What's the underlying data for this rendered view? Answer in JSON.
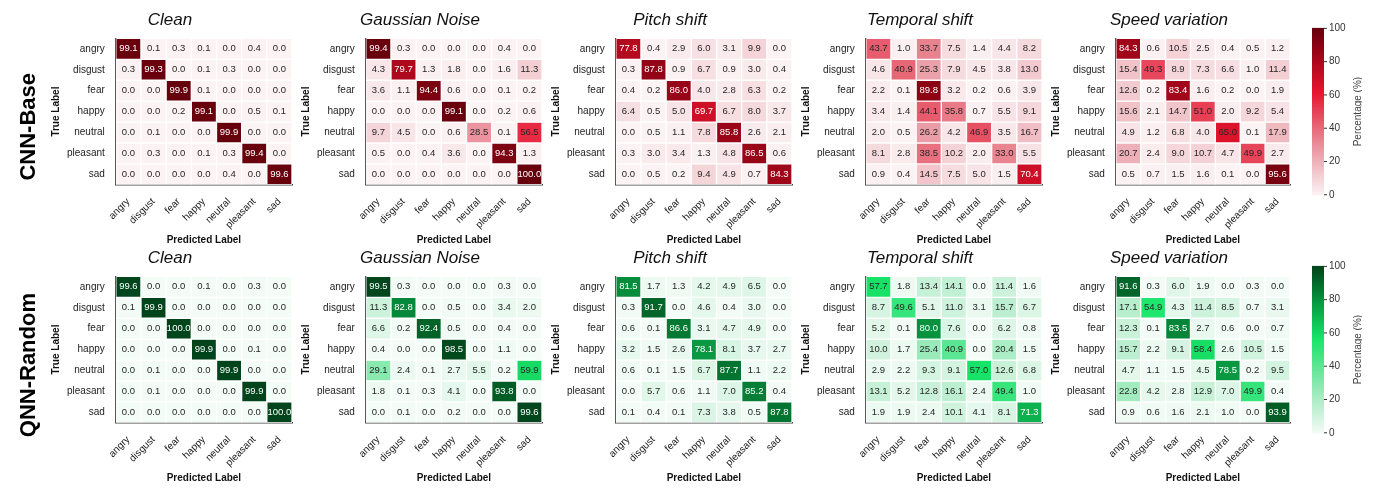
{
  "chart_data": [
    {
      "type": "heatmap",
      "title": "Clean",
      "xlabel": "Predicted Label",
      "ylabel": "True Label",
      "annotations": [
        "CNN-Base"
      ],
      "color": "#67000d",
      "categories": [
        "angry",
        "disgust",
        "fear",
        "happy",
        "neutral",
        "pleasant",
        "sad"
      ],
      "y_categories": [
        "angry",
        "disgust",
        "fear",
        "happy",
        "neutral",
        "pleasant",
        "sad"
      ],
      "cells": [
        [
          99.1,
          0.1,
          0.3,
          0.1,
          0.0,
          0.4,
          0.0
        ],
        [
          0.3,
          99.3,
          0.0,
          0.1,
          0.3,
          0.0,
          0.0
        ],
        [
          0.0,
          0.0,
          99.9,
          0.1,
          0.0,
          0.0,
          0.0
        ],
        [
          0.0,
          0.0,
          0.2,
          99.1,
          0.0,
          0.5,
          0.1
        ],
        [
          0.0,
          0.1,
          0.0,
          0.0,
          99.9,
          0.0,
          0.0
        ],
        [
          0.0,
          0.3,
          0.0,
          0.1,
          0.3,
          99.4,
          0.0
        ],
        [
          0.0,
          0.0,
          0.0,
          0.0,
          0.4,
          0.0,
          99.6
        ]
      ],
      "cell_labels": [
        [
          "99.1",
          "0.1",
          "0.3",
          "0.1",
          "0.0",
          "0.4",
          "0.0"
        ],
        [
          "0.3",
          "99.3",
          "0.0",
          "0.1",
          "0.3",
          "0.0",
          "0.0"
        ],
        [
          "0.0",
          "0.0",
          "99.9",
          "0.1",
          "0.0",
          "0.0",
          "0.0"
        ],
        [
          "0.0",
          "0.0",
          "0.2",
          "99.1",
          "0.0",
          "0.5",
          "0.1"
        ],
        [
          "0.0",
          "0.1",
          "0.0",
          "0.0",
          "99.9",
          "0.0",
          "0.0"
        ],
        [
          "0.0",
          "0.3",
          "0.0",
          "0.1",
          "0.3",
          "99.4",
          "0.0"
        ],
        [
          "0.0",
          "0.0",
          "0.0",
          "0.0",
          "0.4",
          "0.0",
          "99.6"
        ]
      ]
    },
    {
      "type": "heatmap",
      "title": "Gaussian Noise",
      "xlabel": "Predicted Label",
      "ylabel": "True Label",
      "color": "#67000d",
      "categories": [
        "angry",
        "disgust",
        "fear",
        "happy",
        "neutral",
        "pleasant",
        "sad"
      ],
      "y_categories": [
        "angry",
        "disgust",
        "fear",
        "happy",
        "neutral",
        "pleasant",
        "sad"
      ],
      "cells": [
        [
          99.4,
          0.3,
          0.0,
          0.0,
          0.0,
          0.4,
          0.0
        ],
        [
          4.3,
          79.7,
          1.3,
          1.8,
          0.0,
          1.6,
          11.3
        ],
        [
          3.6,
          1.1,
          94.4,
          0.6,
          0.0,
          0.1,
          0.2
        ],
        [
          0.0,
          0.0,
          0.0,
          99.1,
          0.0,
          0.2,
          0.6
        ],
        [
          9.7,
          4.5,
          0.0,
          0.6,
          28.5,
          0.1,
          56.5
        ],
        [
          0.5,
          0.0,
          0.4,
          3.6,
          0.0,
          94.3,
          1.3
        ],
        [
          0.0,
          0.0,
          0.0,
          0.0,
          0.0,
          0.0,
          100.0
        ]
      ],
      "cell_labels": [
        [
          "99.4",
          "0.3",
          "0.0",
          "0.0",
          "0.0",
          "0.4",
          "0.0"
        ],
        [
          "4.3",
          "79.7",
          "1.3",
          "1.8",
          "0.0",
          "1.6",
          "11.3"
        ],
        [
          "3.6",
          "1.1",
          "94.4",
          "0.6",
          "0.0",
          "0.1",
          "0.2"
        ],
        [
          "0.0",
          "0.0",
          "0.0",
          "99.1",
          "0.0",
          "0.2",
          "0.6"
        ],
        [
          "9.7",
          "4.5",
          "0.0",
          "0.6",
          "28.5",
          "0.1",
          "56.5"
        ],
        [
          "0.5",
          "0.0",
          "0.4",
          "3.6",
          "0.0",
          "94.3",
          "1.3"
        ],
        [
          "0.0",
          "0.0",
          "0.0",
          "0.0",
          "0.0",
          "0.0",
          "100.0"
        ]
      ]
    },
    {
      "type": "heatmap",
      "title": "Pitch shift",
      "xlabel": "Predicted Label",
      "ylabel": "True Label",
      "color": "#67000d",
      "categories": [
        "angry",
        "disgust",
        "fear",
        "happy",
        "neutral",
        "pleasant",
        "sad"
      ],
      "y_categories": [
        "angry",
        "disgust",
        "fear",
        "happy",
        "neutral",
        "pleasant",
        "sad"
      ],
      "cells": [
        [
          77.8,
          0.4,
          2.9,
          6.0,
          3.1,
          9.9,
          0.0
        ],
        [
          0.3,
          87.8,
          0.9,
          6.7,
          0.9,
          3.0,
          0.4
        ],
        [
          0.4,
          0.2,
          86.0,
          4.0,
          2.8,
          6.3,
          0.2
        ],
        [
          6.4,
          0.5,
          5.0,
          69.7,
          6.7,
          8.0,
          3.7
        ],
        [
          0.0,
          0.5,
          1.1,
          7.8,
          85.8,
          2.6,
          2.1
        ],
        [
          0.3,
          3.0,
          3.4,
          1.3,
          4.8,
          86.5,
          0.6
        ],
        [
          0.0,
          0.5,
          0.2,
          9.4,
          4.9,
          0.7,
          84.3
        ]
      ],
      "cell_labels": [
        [
          "77.8",
          "0.4",
          "2.9",
          "6.0",
          "3.1",
          "9.9",
          "0.0"
        ],
        [
          "0.3",
          "87.8",
          "0.9",
          "6.7",
          "0.9",
          "3.0",
          "0.4"
        ],
        [
          "0.4",
          "0.2",
          "86.0",
          "4.0",
          "2.8",
          "6.3",
          "0.2"
        ],
        [
          "6.4",
          "0.5",
          "5.0",
          "69.7",
          "6.7",
          "8.0",
          "3.7"
        ],
        [
          "0.0",
          "0.5",
          "1.1",
          "7.8",
          "85.8",
          "2.6",
          "2.1"
        ],
        [
          "0.3",
          "3.0",
          "3.4",
          "1.3",
          "4.8",
          "86.5",
          "0.6"
        ],
        [
          "0.0",
          "0.5",
          "0.2",
          "9.4",
          "4.9",
          "0.7",
          "84.3"
        ]
      ]
    },
    {
      "type": "heatmap",
      "title": "Temporal shift",
      "xlabel": "Predicted Label",
      "ylabel": "True Label",
      "color": "#67000d",
      "categories": [
        "angry",
        "disgust",
        "fear",
        "happy",
        "neutral",
        "pleasant",
        "sad"
      ],
      "y_categories": [
        "angry",
        "disgust",
        "fear",
        "happy",
        "neutral",
        "pleasant",
        "sad"
      ],
      "cells": [
        [
          43.7,
          1.0,
          33.7,
          7.5,
          1.4,
          4.4,
          8.2
        ],
        [
          4.6,
          40.9,
          25.3,
          7.9,
          4.5,
          3.8,
          13.0
        ],
        [
          2.2,
          0.1,
          89.8,
          3.2,
          0.2,
          0.6,
          3.9
        ],
        [
          3.4,
          1.4,
          44.1,
          35.8,
          0.7,
          5.5,
          9.1
        ],
        [
          2.0,
          0.5,
          26.2,
          4.2,
          46.9,
          3.5,
          16.7
        ],
        [
          8.1,
          2.8,
          38.5,
          10.2,
          2.0,
          33.0,
          5.5
        ],
        [
          0.9,
          0.4,
          14.5,
          7.5,
          5.0,
          1.5,
          70.4
        ]
      ],
      "cell_labels": [
        [
          "43.7",
          "1.0",
          "33.7",
          "7.5",
          "1.4",
          "4.4",
          "8.2"
        ],
        [
          "4.6",
          "40.9",
          "25.3",
          "7.9",
          "4.5",
          "3.8",
          "13.0"
        ],
        [
          "2.2",
          "0.1",
          "89.8",
          "3.2",
          "0.2",
          "0.6",
          "3.9"
        ],
        [
          "3.4",
          "1.4",
          "44.1",
          "35.8",
          "0.7",
          "5.5",
          "9.1"
        ],
        [
          "2.0",
          "0.5",
          "26.2",
          "4.2",
          "46.9",
          "3.5",
          "16.7"
        ],
        [
          "8.1",
          "2.8",
          "38.5",
          "10.2",
          "2.0",
          "33.0",
          "5.5"
        ],
        [
          "0.9",
          "0.4",
          "14.5",
          "7.5",
          "5.0",
          "1.5",
          "70.4"
        ]
      ]
    },
    {
      "type": "heatmap",
      "title": "Speed variation",
      "xlabel": "Predicted Label",
      "ylabel": "True Label",
      "clabel": "Percentage (%)",
      "color": "#67000d",
      "clim": [
        0,
        100
      ],
      "cticks": [
        0,
        20,
        40,
        60,
        80,
        100
      ],
      "categories": [
        "angry",
        "disgust",
        "fear",
        "happy",
        "neutral",
        "pleasant",
        "sad"
      ],
      "y_categories": [
        "angry",
        "disgust",
        "fear",
        "happy",
        "neutral",
        "pleasant",
        "sad"
      ],
      "cells": [
        [
          84.3,
          0.6,
          10.5,
          2.5,
          0.4,
          0.5,
          1.2
        ],
        [
          15.4,
          49.3,
          8.9,
          7.3,
          6.6,
          1.0,
          11.4
        ],
        [
          12.6,
          0.2,
          83.4,
          1.6,
          0.2,
          0.0,
          1.9
        ],
        [
          15.6,
          2.1,
          14.7,
          51.0,
          2.0,
          9.2,
          5.4
        ],
        [
          4.9,
          1.2,
          6.8,
          4.0,
          65.0,
          0.1,
          17.9
        ],
        [
          20.7,
          2.4,
          9.0,
          10.7,
          4.7,
          49.9,
          2.7
        ],
        [
          0.5,
          0.7,
          1.5,
          1.6,
          0.1,
          0.0,
          95.6
        ]
      ],
      "cell_labels": [
        [
          "84.3",
          "0.6",
          "10.5",
          "2.5",
          "0.4",
          "0.5",
          "1.2"
        ],
        [
          "15.4",
          "49.3",
          "8.9",
          "7.3",
          "6.6",
          "1.0",
          "11.4"
        ],
        [
          "12.6",
          "0.2",
          "83.4",
          "1.6",
          "0.2",
          "0.0",
          "1.9"
        ],
        [
          "15.6",
          "2.1",
          "14.7",
          "51.0",
          "2.0",
          "9.2",
          "5.4"
        ],
        [
          "4.9",
          "1.2",
          "6.8",
          "4.0",
          "65.0",
          "0.1",
          "17.9"
        ],
        [
          "20.7",
          "2.4",
          "9.0",
          "10.7",
          "4.7",
          "49.9",
          "2.7"
        ],
        [
          "0.5",
          "0.7",
          "1.5",
          "1.6",
          "0.1",
          "0.0",
          "95.6"
        ]
      ]
    },
    {
      "type": "heatmap",
      "title": "Clean",
      "xlabel": "Predicted Label",
      "ylabel": "True Label",
      "annotations": [
        "QNN-Random"
      ],
      "color": "#00441b",
      "categories": [
        "angry",
        "disgust",
        "fear",
        "happy",
        "neutral",
        "pleasant",
        "sad"
      ],
      "y_categories": [
        "angry",
        "disgust",
        "fear",
        "happy",
        "neutral",
        "pleasant",
        "sad"
      ],
      "cells": [
        [
          99.6,
          0.0,
          0.0,
          0.1,
          0.0,
          0.3,
          0.0
        ],
        [
          0.1,
          99.9,
          0.0,
          0.0,
          0.0,
          0.0,
          0.0
        ],
        [
          0.0,
          0.0,
          100.0,
          0.0,
          0.0,
          0.0,
          0.0
        ],
        [
          0.0,
          0.0,
          0.0,
          99.9,
          0.0,
          0.1,
          0.0
        ],
        [
          0.0,
          0.1,
          0.0,
          0.0,
          99.9,
          0.0,
          0.0
        ],
        [
          0.0,
          0.1,
          0.0,
          0.0,
          0.0,
          99.9,
          0.0
        ],
        [
          0.0,
          0.0,
          0.0,
          0.0,
          0.0,
          0.0,
          100.0
        ]
      ],
      "cell_labels": [
        [
          "99.6",
          "0.0",
          "0.0",
          "0.1",
          "0.0",
          "0.3",
          "0.0"
        ],
        [
          "0.1",
          "99.9",
          "0.0",
          "0.0",
          "0.0",
          "0.0",
          "0.0"
        ],
        [
          "0.0",
          "0.0",
          "100.0",
          "0.0",
          "0.0",
          "0.0",
          "0.0"
        ],
        [
          "0.0",
          "0.0",
          "0.0",
          "99.9",
          "0.0",
          "0.1",
          "0.0"
        ],
        [
          "0.0",
          "0.1",
          "0.0",
          "0.0",
          "99.9",
          "0.0",
          "0.0"
        ],
        [
          "0.0",
          "0.1",
          "0.0",
          "0.0",
          "0.0",
          "99.9",
          "0.0"
        ],
        [
          "0.0",
          "0.0",
          "0.0",
          "0.0",
          "0.0",
          "0.0",
          "100.0"
        ]
      ]
    },
    {
      "type": "heatmap",
      "title": "Gaussian Noise",
      "xlabel": "Predicted Label",
      "ylabel": "True Label",
      "color": "#00441b",
      "categories": [
        "angry",
        "disgust",
        "fear",
        "happy",
        "neutral",
        "pleasant",
        "sad"
      ],
      "y_categories": [
        "angry",
        "disgust",
        "fear",
        "happy",
        "neutral",
        "pleasant",
        "sad"
      ],
      "cells": [
        [
          99.5,
          0.3,
          0.0,
          0.0,
          0.0,
          0.3,
          0.0
        ],
        [
          11.3,
          82.8,
          0.0,
          0.5,
          0.0,
          3.4,
          2.0
        ],
        [
          6.6,
          0.2,
          92.4,
          0.5,
          0.0,
          0.4,
          0.0
        ],
        [
          0.4,
          0.0,
          0.0,
          98.5,
          0.0,
          1.1,
          0.0
        ],
        [
          29.1,
          2.4,
          0.1,
          2.7,
          5.5,
          0.2,
          59.9
        ],
        [
          1.8,
          0.1,
          0.3,
          4.1,
          0.0,
          93.8,
          0.0
        ],
        [
          0.0,
          0.1,
          0.0,
          0.2,
          0.0,
          0.0,
          99.6
        ]
      ],
      "cell_labels": [
        [
          "99.5",
          "0.3",
          "0.0",
          "0.0",
          "0.0",
          "0.3",
          "0.0"
        ],
        [
          "11.3",
          "82.8",
          "0.0",
          "0.5",
          "0.0",
          "3.4",
          "2.0"
        ],
        [
          "6.6",
          "0.2",
          "92.4",
          "0.5",
          "0.0",
          "0.4",
          "0.0"
        ],
        [
          "0.4",
          "0.0",
          "0.0",
          "98.5",
          "0.0",
          "1.1",
          "0.0"
        ],
        [
          "29.1",
          "2.4",
          "0.1",
          "2.7",
          "5.5",
          "0.2",
          "59.9"
        ],
        [
          "1.8",
          "0.1",
          "0.3",
          "4.1",
          "0.0",
          "93.8",
          "0.0"
        ],
        [
          "0.0",
          "0.1",
          "0.0",
          "0.2",
          "0.0",
          "0.0",
          "99.6"
        ]
      ]
    },
    {
      "type": "heatmap",
      "title": "Pitch shift",
      "xlabel": "Predicted Label",
      "ylabel": "True Label",
      "color": "#00441b",
      "categories": [
        "angry",
        "disgust",
        "fear",
        "happy",
        "neutral",
        "pleasant",
        "sad"
      ],
      "y_categories": [
        "angry",
        "disgust",
        "fear",
        "happy",
        "neutral",
        "pleasant",
        "sad"
      ],
      "cells": [
        [
          81.5,
          1.7,
          1.3,
          4.2,
          4.9,
          6.5,
          0.0
        ],
        [
          0.3,
          91.7,
          0.0,
          4.6,
          0.4,
          3.0,
          0.0
        ],
        [
          0.6,
          0.1,
          86.6,
          3.1,
          4.7,
          4.9,
          0.0
        ],
        [
          3.2,
          1.5,
          2.6,
          78.1,
          8.1,
          3.7,
          2.7
        ],
        [
          0.6,
          0.1,
          1.5,
          6.7,
          87.7,
          1.1,
          2.2
        ],
        [
          0.0,
          5.7,
          0.6,
          1.1,
          7.0,
          85.2,
          0.4
        ],
        [
          0.1,
          0.4,
          0.1,
          7.3,
          3.8,
          0.5,
          87.8
        ]
      ],
      "cell_labels": [
        [
          "81.5",
          "1.7",
          "1.3",
          "4.2",
          "4.9",
          "6.5",
          "0.0"
        ],
        [
          "0.3",
          "91.7",
          "0.0",
          "4.6",
          "0.4",
          "3.0",
          "0.0"
        ],
        [
          "0.6",
          "0.1",
          "86.6",
          "3.1",
          "4.7",
          "4.9",
          "0.0"
        ],
        [
          "3.2",
          "1.5",
          "2.6",
          "78.1",
          "8.1",
          "3.7",
          "2.7"
        ],
        [
          "0.6",
          "0.1",
          "1.5",
          "6.7",
          "87.7",
          "1.1",
          "2.2"
        ],
        [
          "0.0",
          "5.7",
          "0.6",
          "1.1",
          "7.0",
          "85.2",
          "0.4"
        ],
        [
          "0.1",
          "0.4",
          "0.1",
          "7.3",
          "3.8",
          "0.5",
          "87.8"
        ]
      ]
    },
    {
      "type": "heatmap",
      "title": "Temporal shift",
      "xlabel": "Predicted Label",
      "ylabel": "True Label",
      "color": "#00441b",
      "categories": [
        "angry",
        "disgust",
        "fear",
        "happy",
        "neutral",
        "pleasant",
        "sad"
      ],
      "y_categories": [
        "angry",
        "disgust",
        "fear",
        "happy",
        "neutral",
        "pleasant",
        "sad"
      ],
      "cells": [
        [
          57.7,
          1.8,
          13.4,
          14.1,
          0.0,
          11.4,
          1.6
        ],
        [
          8.7,
          49.6,
          5.1,
          11.0,
          3.1,
          15.7,
          6.7
        ],
        [
          5.2,
          0.1,
          80.0,
          7.6,
          0.0,
          6.2,
          0.8
        ],
        [
          10.0,
          1.7,
          25.4,
          40.9,
          0.0,
          20.4,
          1.5
        ],
        [
          2.9,
          2.2,
          9.3,
          9.1,
          57.0,
          12.6,
          6.8
        ],
        [
          13.1,
          5.2,
          12.8,
          16.1,
          2.4,
          49.4,
          1.0
        ],
        [
          1.9,
          1.9,
          2.4,
          10.1,
          4.1,
          8.1,
          71.3
        ]
      ],
      "cell_labels": [
        [
          "57.7",
          "1.8",
          "13.4",
          "14.1",
          "0.0",
          "11.4",
          "1.6"
        ],
        [
          "8.7",
          "49.6",
          "5.1",
          "11.0",
          "3.1",
          "15.7",
          "6.7"
        ],
        [
          "5.2",
          "0.1",
          "80.0",
          "7.6",
          "0.0",
          "6.2",
          "0.8"
        ],
        [
          "10.0",
          "1.7",
          "25.4",
          "40.9",
          "0.0",
          "20.4",
          "1.5"
        ],
        [
          "2.9",
          "2.2",
          "9.3",
          "9.1",
          "57.0",
          "12.6",
          "6.8"
        ],
        [
          "13.1",
          "5.2",
          "12.8",
          "16.1",
          "2.4",
          "49.4",
          "1.0"
        ],
        [
          "1.9",
          "1.9",
          "2.4",
          "10.1",
          "4.1",
          "8.1",
          "71.3"
        ]
      ]
    },
    {
      "type": "heatmap",
      "title": "Speed variation",
      "xlabel": "Predicted Label",
      "ylabel": "True Label",
      "clabel": "Percentage (%)",
      "color": "#00441b",
      "clim": [
        0,
        100
      ],
      "cticks": [
        0,
        20,
        40,
        60,
        80,
        100
      ],
      "categories": [
        "angry",
        "disgust",
        "fear",
        "happy",
        "neutral",
        "pleasant",
        "sad"
      ],
      "y_categories": [
        "angry",
        "disgust",
        "fear",
        "happy",
        "neutral",
        "pleasant",
        "sad"
      ],
      "cells": [
        [
          91.6,
          0.3,
          6.0,
          1.9,
          0.0,
          0.3,
          0.0
        ],
        [
          17.1,
          54.9,
          4.3,
          11.4,
          8.5,
          0.7,
          3.1
        ],
        [
          12.3,
          0.1,
          83.5,
          2.7,
          0.6,
          0.0,
          0.7
        ],
        [
          15.7,
          2.2,
          9.1,
          58.4,
          2.6,
          10.5,
          1.5
        ],
        [
          4.7,
          1.1,
          1.5,
          4.5,
          78.5,
          0.2,
          9.5
        ],
        [
          22.8,
          4.2,
          2.8,
          12.9,
          7.0,
          49.9,
          0.4
        ],
        [
          0.9,
          0.6,
          1.6,
          2.1,
          1.0,
          0.0,
          93.9
        ]
      ],
      "cell_labels": [
        [
          "91.6",
          "0.3",
          "6.0",
          "1.9",
          "0.0",
          "0.3",
          "0.0"
        ],
        [
          "17.1",
          "54.9",
          "4.3",
          "11.4",
          "8.5",
          "0.7",
          "3.1"
        ],
        [
          "12.3",
          "0.1",
          "83.5",
          "2.7",
          "0.6",
          "0.0",
          "0.7"
        ],
        [
          "15.7",
          "2.2",
          "9.1",
          "58.4",
          "2.6",
          "10.5",
          "1.5"
        ],
        [
          "4.7",
          "1.1",
          "1.5",
          "4.5",
          "78.5",
          "0.2",
          "9.5"
        ],
        [
          "22.8",
          "4.2",
          "2.8",
          "12.9",
          "7.0",
          "49.9",
          "0.4"
        ],
        [
          "0.9",
          "0.6",
          "1.6",
          "2.1",
          "1.0",
          "0.0",
          "93.9"
        ]
      ]
    }
  ]
}
